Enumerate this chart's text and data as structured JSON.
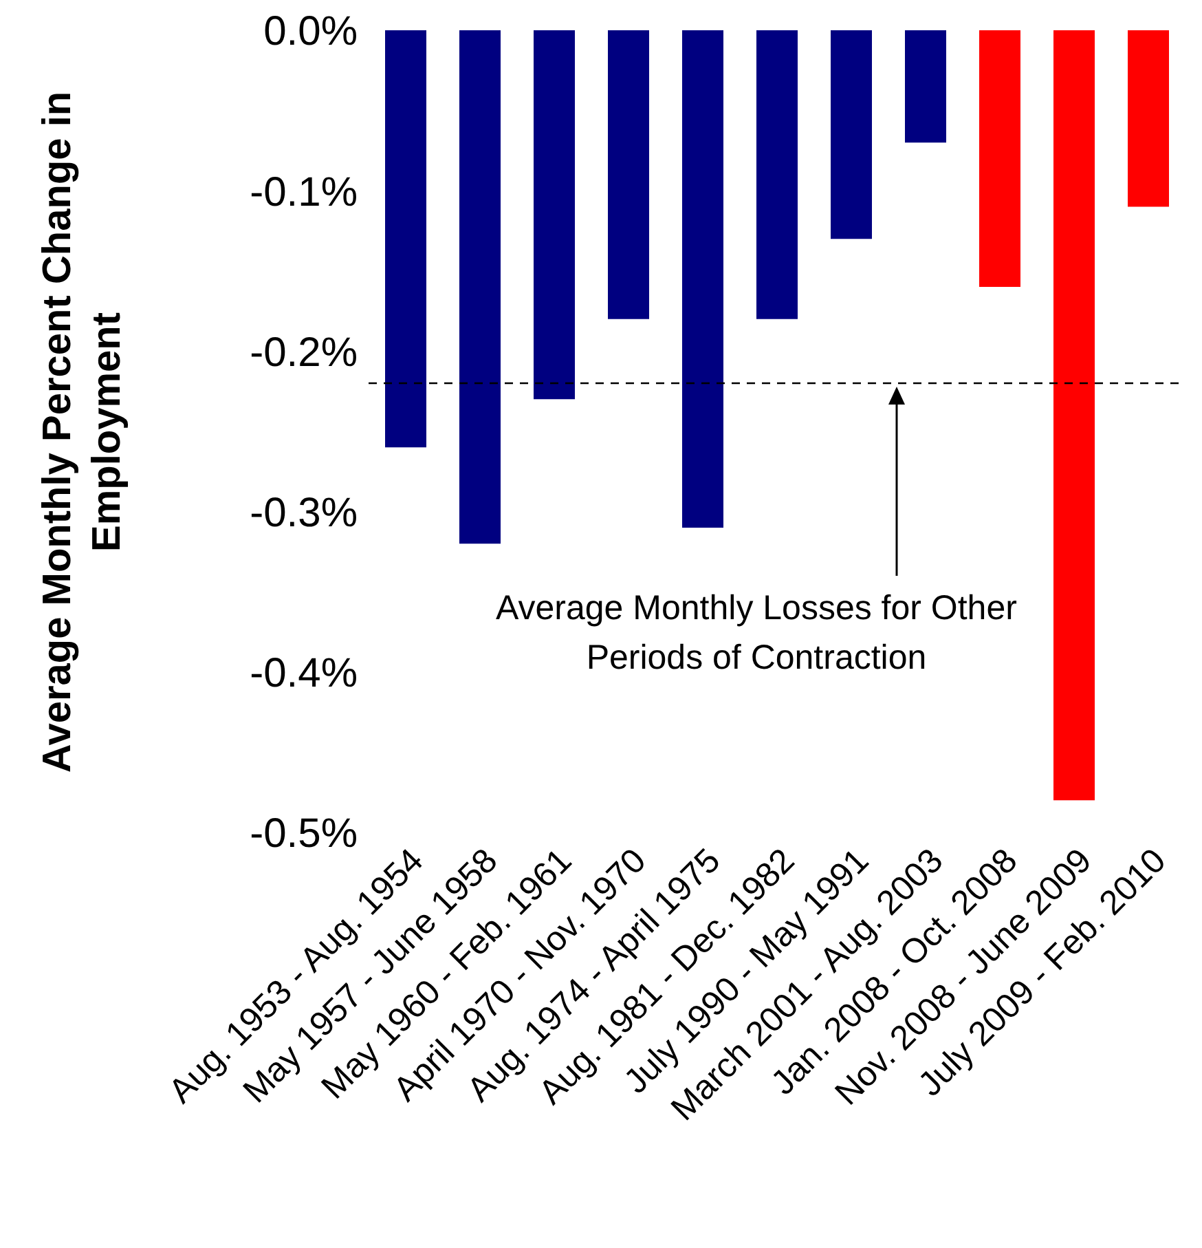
{
  "chart_data": {
    "type": "bar",
    "ylabel": "Average Monthly Percent Change in Employment",
    "categories": [
      "Aug. 1953 - Aug. 1954",
      "May 1957 - June 1958",
      "May 1960 - Feb. 1961",
      "April 1970 - Nov. 1970",
      "Aug. 1974 - April 1975",
      "Aug. 1981 - Dec. 1982",
      "July 1990 - May 1991",
      "March 2001 - Aug. 2003",
      "Jan. 2008 - Oct. 2008",
      "Nov. 2008 - June 2009",
      "July 2009 - Feb. 2010"
    ],
    "values": [
      -0.26,
      -0.32,
      -0.23,
      -0.18,
      -0.31,
      -0.18,
      -0.13,
      -0.07,
      -0.16,
      -0.48,
      -0.11
    ],
    "colors": [
      "#000080",
      "#000080",
      "#000080",
      "#000080",
      "#000080",
      "#000080",
      "#000080",
      "#000080",
      "#ff0000",
      "#ff0000",
      "#ff0000"
    ],
    "ylim": [
      -0.5,
      0
    ],
    "yticks": [
      {
        "value": 0,
        "label": "0.0%"
      },
      {
        "value": -0.1,
        "label": "-0.1%"
      },
      {
        "value": -0.2,
        "label": "-0.2%"
      },
      {
        "value": -0.3,
        "label": "-0.3%"
      },
      {
        "value": -0.4,
        "label": "-0.4%"
      },
      {
        "value": -0.5,
        "label": "-0.5%"
      }
    ],
    "ref_lines": [
      {
        "axis": "y",
        "value": -0.22,
        "label": "Average Monthly Losses for Other Periods of Contraction",
        "color": "#000000",
        "line_style": "dashed"
      }
    ],
    "grid": false,
    "legend": false
  }
}
